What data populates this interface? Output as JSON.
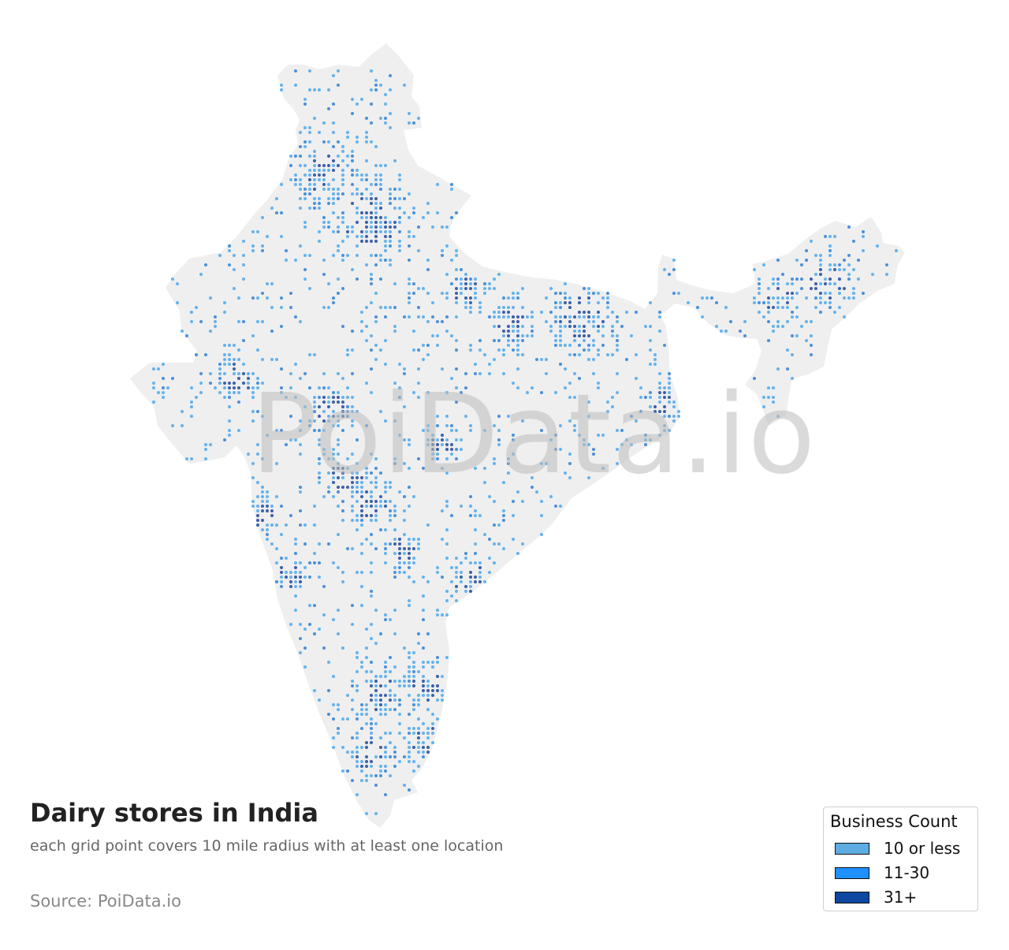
{
  "title": "Dairy stores in India",
  "subtitle": "each grid point covers 10 mile radius with at least one location",
  "source": "Source: PoiData.io",
  "watermark": "PoiData.io",
  "legend": {
    "title": "Business Count",
    "items": [
      {
        "label": "10 or less",
        "color": "#5dade2"
      },
      {
        "label": "11-30",
        "color": "#1e90ff"
      },
      {
        "label": "31+",
        "color": "#0d47a1"
      }
    ]
  },
  "colors": {
    "land": "#efefef",
    "point_low": "#63b3ed",
    "point_mid": "#4a90d9",
    "point_high": "#3c5fa8"
  }
}
